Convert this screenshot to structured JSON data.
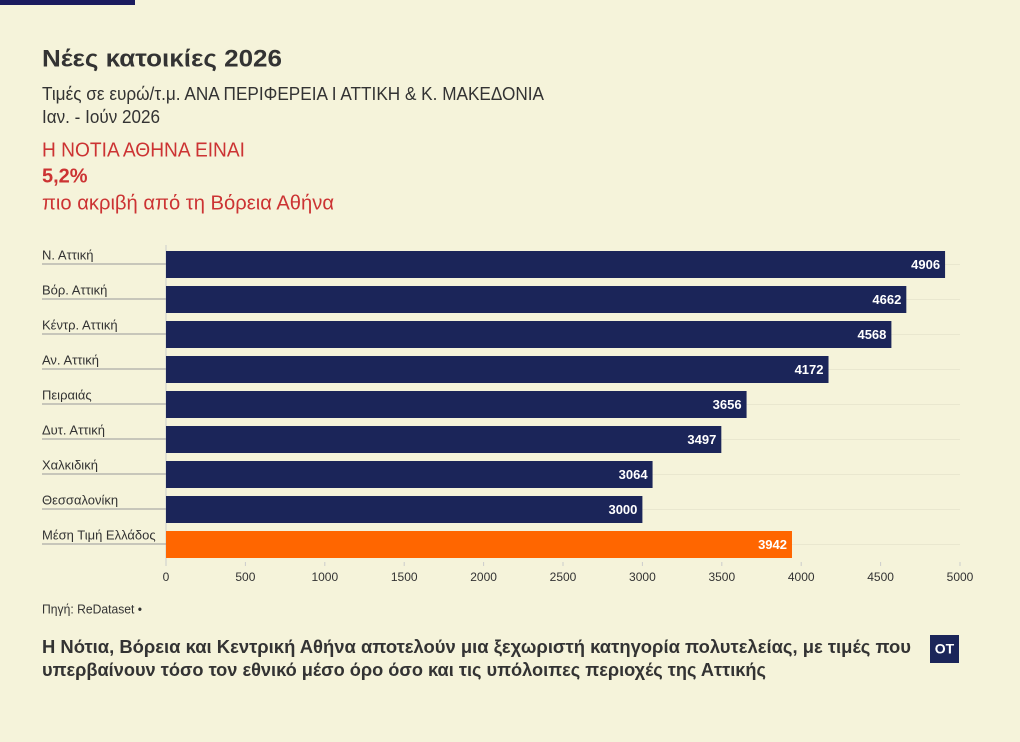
{
  "chart_data": {
    "type": "bar",
    "title": "Νέες κατοικίες 2026",
    "subtitle": [
      "Τιμές σε ευρώ/τ.μ. ΑΝΑ ΠΕΡΙΦΕΡΕΙΑ Ι ΑΤΤΙΚΗ & Κ. ΜΑΚΕΔΟΝΙΑ",
      "Ιαν. - Ιούν 2026"
    ],
    "annotation": [
      "Η ΝΟΤΙΑ ΑΘΗΝΑ ΕΙΝΑΙ",
      "5,2%",
      "πιο ακριβή από τη Βόρεια Αθήνα"
    ],
    "categories": [
      "Ν. Αττική",
      "Βόρ. Αττική",
      "Κέντρ. Αττική",
      "Αν. Αττική",
      "Πειραιάς",
      "Δυτ. Αττική",
      "Χαλκιδική",
      "Θεσσαλονίκη",
      "Μέση Τιμή Ελλάδος"
    ],
    "values": [
      4906,
      4662,
      4568,
      4172,
      3656,
      3497,
      3064,
      3000,
      3942
    ],
    "colors": [
      "#1b2559",
      "#1b2559",
      "#1b2559",
      "#1b2559",
      "#1b2559",
      "#1b2559",
      "#1b2559",
      "#1b2559",
      "#ff6600"
    ],
    "xlim": [
      0,
      5000
    ],
    "xticks": [
      0,
      500,
      1000,
      1500,
      2000,
      2500,
      3000,
      3500,
      4000,
      4500,
      5000
    ],
    "source": "Πηγή: ReDataset •",
    "note": [
      "Η Νότια, Βόρεια και Κεντρική Αθήνα αποτελούν μια ξεχωριστή κατηγορία πολυτελείας, με τιμές που",
      "υπερβαίνουν τόσο τον εθνικό μέσο όρο όσο και τις υπόλοιπες περιοχές της Αττικής"
    ],
    "logo": "OT"
  }
}
